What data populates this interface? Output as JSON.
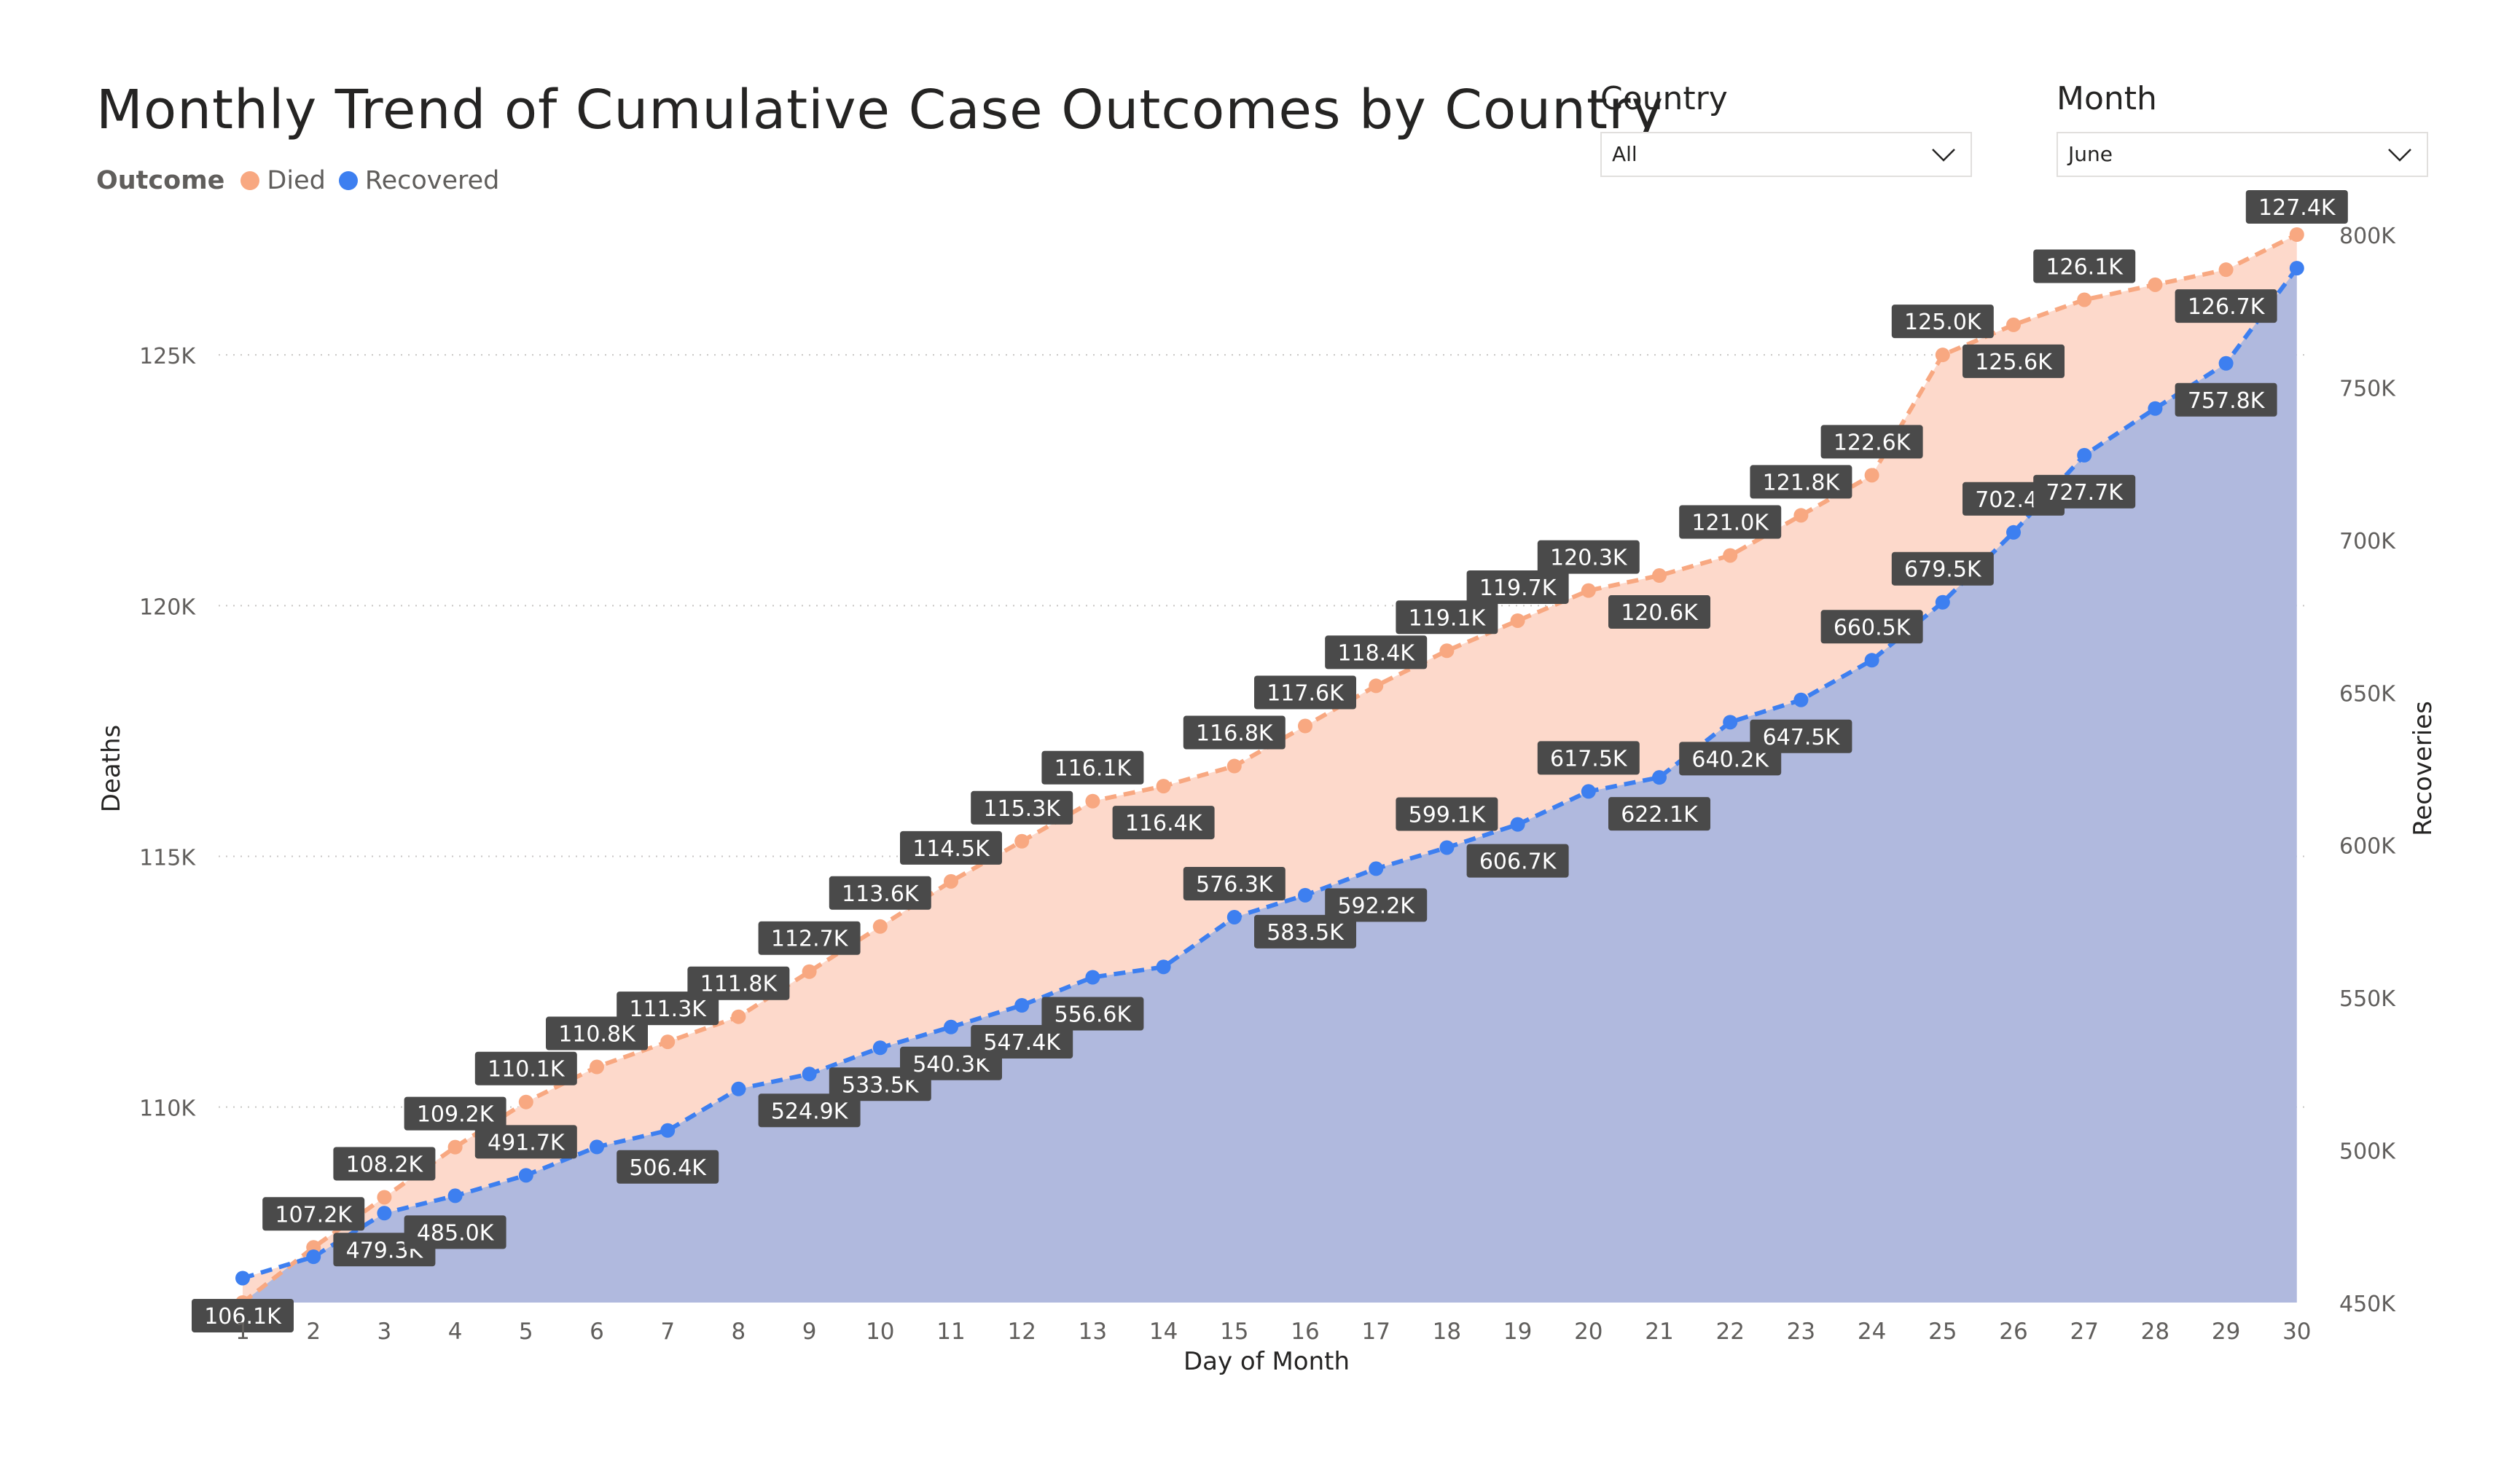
{
  "title": "Monthly Trend of Cumulative Case Outcomes by Country",
  "legend": {
    "title": "Outcome",
    "items": [
      {
        "label": "Died",
        "color": "#f8a881"
      },
      {
        "label": "Recovered",
        "color": "#3d7ff0"
      }
    ]
  },
  "filters": {
    "country": {
      "title": "Country",
      "value": "All"
    },
    "month": {
      "title": "Month",
      "value": "June"
    }
  },
  "chart_data": {
    "type": "line",
    "xlabel": "Day of Month",
    "ylabel_left": "Deaths",
    "ylabel_right": "Recoveries",
    "x": [
      1,
      2,
      3,
      4,
      5,
      6,
      7,
      8,
      9,
      10,
      11,
      12,
      13,
      14,
      15,
      16,
      17,
      18,
      19,
      20,
      21,
      22,
      23,
      24,
      25,
      26,
      27,
      28,
      29,
      30
    ],
    "ylim_left": [
      106100,
      127400
    ],
    "ylim_right": [
      450000,
      800000
    ],
    "yticks_left": [
      "110K",
      "115K",
      "120K",
      "125K"
    ],
    "yticks_right": [
      "450K",
      "500K",
      "550K",
      "600K",
      "650K",
      "700K",
      "750K",
      "800K"
    ],
    "series": [
      {
        "name": "Died",
        "axis": "left",
        "color": "#f8a881",
        "fill": "#fdd9cb",
        "values": [
          106100,
          107200,
          108200,
          109200,
          110100,
          110800,
          111300,
          111800,
          112700,
          113600,
          114500,
          115300,
          116100,
          116400,
          116800,
          117600,
          118400,
          119100,
          119700,
          120300,
          120600,
          121000,
          121800,
          122600,
          125000,
          125600,
          126100,
          126400,
          126700,
          127400
        ],
        "labels": [
          "106.1K",
          "107.2K",
          "108.2K",
          "109.2K",
          "110.1K",
          "110.8K",
          "111.3K",
          "111.8K",
          "112.7K",
          "113.6K",
          "114.5K",
          "115.3K",
          "116.1K",
          "116.4K",
          "116.8K",
          "117.6K",
          "118.4K",
          "119.1K",
          "119.7K",
          "120.3K",
          "120.6K",
          "121.0K",
          "121.8K",
          "122.6K",
          "125.0K",
          "125.6K",
          "126.1K",
          "",
          "126.7K",
          "127.4K"
        ]
      },
      {
        "name": "Recovered",
        "axis": "right",
        "color": "#3d7ff0",
        "fill": "#b0b9de",
        "values": [
          458000,
          465000,
          479300,
          485000,
          491700,
          501000,
          506400,
          520000,
          524900,
          533500,
          540300,
          547400,
          556600,
          560000,
          576300,
          583500,
          592200,
          599100,
          606700,
          617500,
          622100,
          640200,
          647500,
          660500,
          679500,
          702400,
          727700,
          743000,
          757800,
          789000
        ],
        "labels": [
          "",
          "",
          "479.3K",
          "485.0K",
          "491.7K",
          "",
          "506.4K",
          "",
          "524.9K",
          "533.5K",
          "540.3K",
          "547.4K",
          "556.6K",
          "",
          "576.3K",
          "583.5K",
          "592.2K",
          "599.1K",
          "606.7K",
          "617.5K",
          "622.1K",
          "640.2K",
          "647.5K",
          "660.5K",
          "679.5K",
          "702.4K",
          "727.7K",
          "",
          "757.8K",
          ""
        ]
      }
    ]
  }
}
